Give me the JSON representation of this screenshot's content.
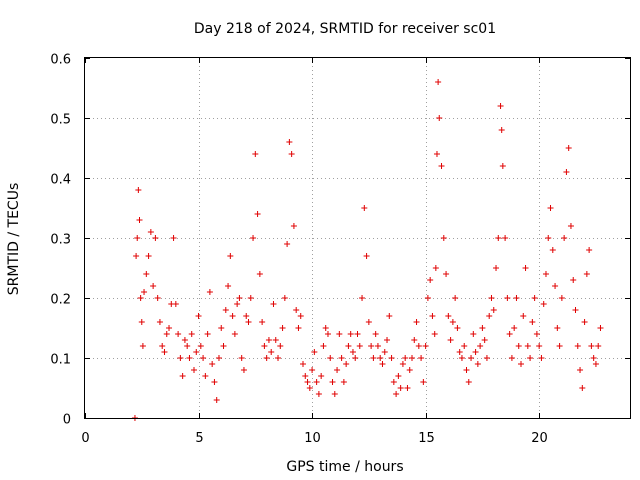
{
  "chart_data": {
    "type": "scatter",
    "title": "Day 218 of 2024, SRMTID for receiver sc01",
    "xlabel": "GPS time / hours",
    "ylabel": "SRMTID / TECUs",
    "xlim": [
      0,
      24
    ],
    "ylim": [
      0,
      0.6
    ],
    "xticks": [
      0,
      5,
      10,
      15,
      20
    ],
    "xtick_labels": [
      "0",
      "5",
      "10",
      "15",
      "20"
    ],
    "yticks": [
      0,
      0.1,
      0.2,
      0.3,
      0.4,
      0.5,
      0.6
    ],
    "ytick_labels": [
      "0",
      "0.1",
      "0.2",
      "0.3",
      "0.4",
      "0.5",
      "0.6"
    ],
    "grid": true,
    "marker": "+",
    "color": "#e00000",
    "series": [
      {
        "name": "sc01",
        "x": [
          2.2,
          2.25,
          2.3,
          2.35,
          2.4,
          2.45,
          2.5,
          2.55,
          2.6,
          2.7,
          2.8,
          2.9,
          3.0,
          3.1,
          3.2,
          3.3,
          3.4,
          3.5,
          3.6,
          3.7,
          3.8,
          3.9,
          4.0,
          4.1,
          4.2,
          4.3,
          4.4,
          4.5,
          4.6,
          4.7,
          4.8,
          4.9,
          5.0,
          5.1,
          5.2,
          5.3,
          5.4,
          5.5,
          5.6,
          5.7,
          5.8,
          5.9,
          6.0,
          6.1,
          6.2,
          6.3,
          6.4,
          6.5,
          6.6,
          6.7,
          6.8,
          6.9,
          7.0,
          7.1,
          7.2,
          7.3,
          7.4,
          7.5,
          7.6,
          7.7,
          7.8,
          7.9,
          8.0,
          8.1,
          8.2,
          8.3,
          8.4,
          8.5,
          8.6,
          8.7,
          8.8,
          8.9,
          9.0,
          9.1,
          9.2,
          9.3,
          9.4,
          9.5,
          9.6,
          9.7,
          9.8,
          9.9,
          10.0,
          10.1,
          10.2,
          10.3,
          10.4,
          10.5,
          10.6,
          10.7,
          10.8,
          10.9,
          11.0,
          11.1,
          11.2,
          11.3,
          11.4,
          11.5,
          11.6,
          11.7,
          11.8,
          11.9,
          12.0,
          12.1,
          12.2,
          12.3,
          12.4,
          12.5,
          12.6,
          12.7,
          12.8,
          12.9,
          13.0,
          13.1,
          13.2,
          13.3,
          13.4,
          13.5,
          13.6,
          13.7,
          13.8,
          13.9,
          14.0,
          14.1,
          14.2,
          14.3,
          14.4,
          14.5,
          14.6,
          14.7,
          14.8,
          14.9,
          15.0,
          15.1,
          15.2,
          15.3,
          15.4,
          15.45,
          15.5,
          15.55,
          15.6,
          15.7,
          15.8,
          15.9,
          16.0,
          16.1,
          16.2,
          16.3,
          16.4,
          16.5,
          16.6,
          16.7,
          16.8,
          16.9,
          17.0,
          17.1,
          17.2,
          17.3,
          17.4,
          17.5,
          17.6,
          17.7,
          17.8,
          17.9,
          18.0,
          18.1,
          18.2,
          18.3,
          18.35,
          18.4,
          18.5,
          18.6,
          18.7,
          18.8,
          18.9,
          19.0,
          19.1,
          19.2,
          19.3,
          19.4,
          19.5,
          19.6,
          19.7,
          19.8,
          19.9,
          20.0,
          20.1,
          20.2,
          20.3,
          20.4,
          20.5,
          20.6,
          20.7,
          20.8,
          20.9,
          21.0,
          21.1,
          21.2,
          21.3,
          21.4,
          21.5,
          21.6,
          21.7,
          21.8,
          21.9,
          22.0,
          22.1,
          22.2,
          22.3,
          22.4,
          22.5,
          22.6,
          22.7
        ],
        "y": [
          0.0,
          0.27,
          0.3,
          0.38,
          0.33,
          0.2,
          0.16,
          0.12,
          0.21,
          0.24,
          0.27,
          0.31,
          0.22,
          0.3,
          0.2,
          0.16,
          0.12,
          0.11,
          0.14,
          0.15,
          0.19,
          0.3,
          0.19,
          0.14,
          0.1,
          0.07,
          0.13,
          0.12,
          0.1,
          0.14,
          0.08,
          0.11,
          0.17,
          0.12,
          0.1,
          0.07,
          0.14,
          0.21,
          0.09,
          0.06,
          0.03,
          0.1,
          0.15,
          0.12,
          0.18,
          0.22,
          0.27,
          0.17,
          0.14,
          0.19,
          0.2,
          0.1,
          0.08,
          0.17,
          0.16,
          0.2,
          0.3,
          0.44,
          0.34,
          0.24,
          0.16,
          0.12,
          0.1,
          0.13,
          0.11,
          0.19,
          0.13,
          0.1,
          0.12,
          0.15,
          0.2,
          0.29,
          0.46,
          0.44,
          0.32,
          0.18,
          0.15,
          0.17,
          0.09,
          0.07,
          0.06,
          0.05,
          0.08,
          0.11,
          0.06,
          0.04,
          0.07,
          0.12,
          0.15,
          0.14,
          0.1,
          0.06,
          0.04,
          0.08,
          0.14,
          0.1,
          0.06,
          0.09,
          0.12,
          0.14,
          0.11,
          0.1,
          0.14,
          0.12,
          0.2,
          0.35,
          0.27,
          0.16,
          0.12,
          0.1,
          0.14,
          0.12,
          0.1,
          0.09,
          0.11,
          0.13,
          0.17,
          0.1,
          0.06,
          0.04,
          0.07,
          0.05,
          0.09,
          0.1,
          0.05,
          0.08,
          0.1,
          0.13,
          0.16,
          0.12,
          0.1,
          0.06,
          0.12,
          0.2,
          0.23,
          0.17,
          0.14,
          0.25,
          0.44,
          0.56,
          0.5,
          0.42,
          0.3,
          0.24,
          0.17,
          0.13,
          0.16,
          0.2,
          0.15,
          0.11,
          0.1,
          0.12,
          0.08,
          0.06,
          0.1,
          0.14,
          0.11,
          0.09,
          0.12,
          0.15,
          0.13,
          0.1,
          0.17,
          0.2,
          0.18,
          0.25,
          0.3,
          0.52,
          0.48,
          0.42,
          0.3,
          0.2,
          0.14,
          0.1,
          0.15,
          0.2,
          0.12,
          0.09,
          0.17,
          0.25,
          0.12,
          0.1,
          0.16,
          0.2,
          0.14,
          0.12,
          0.1,
          0.19,
          0.24,
          0.3,
          0.35,
          0.28,
          0.22,
          0.15,
          0.12,
          0.2,
          0.3,
          0.41,
          0.45,
          0.32,
          0.23,
          0.18,
          0.12,
          0.08,
          0.05,
          0.16,
          0.24,
          0.28,
          0.12,
          0.1,
          0.09,
          0.12,
          0.15
        ]
      }
    ]
  }
}
